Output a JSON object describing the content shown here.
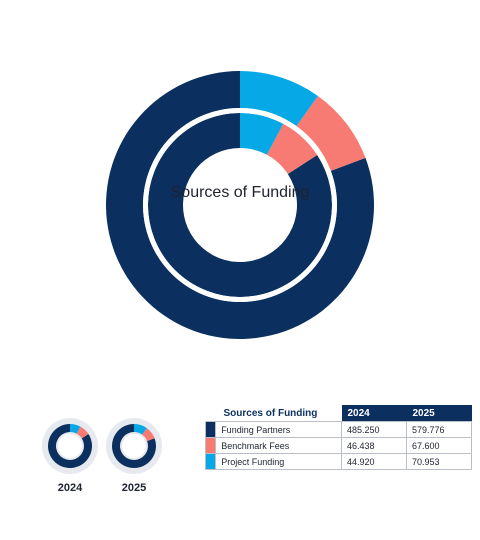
{
  "chart_data": {
    "type": "donut",
    "title": "Sources of Funding",
    "categories": [
      "Funding Partners",
      "Benchmark Fees",
      "Project Funding"
    ],
    "colors": [
      "#0b2f5e",
      "#f77b72",
      "#06a8e6"
    ],
    "series": [
      {
        "name": "2024",
        "values": [
          485.25,
          46.438,
          44.92
        ]
      },
      {
        "name": "2025",
        "values": [
          579.776,
          67.6,
          70.953
        ]
      }
    ],
    "table": {
      "header": [
        "Sources of Funding",
        "2024",
        "2025"
      ],
      "rows": [
        [
          "Funding Partners",
          "485.250",
          "579.776"
        ],
        [
          "Benchmark Fees",
          "46.438",
          "67.600"
        ],
        [
          "Project Funding",
          "44.920",
          "70.953"
        ]
      ]
    },
    "mini_labels": [
      "2024",
      "2025"
    ]
  }
}
